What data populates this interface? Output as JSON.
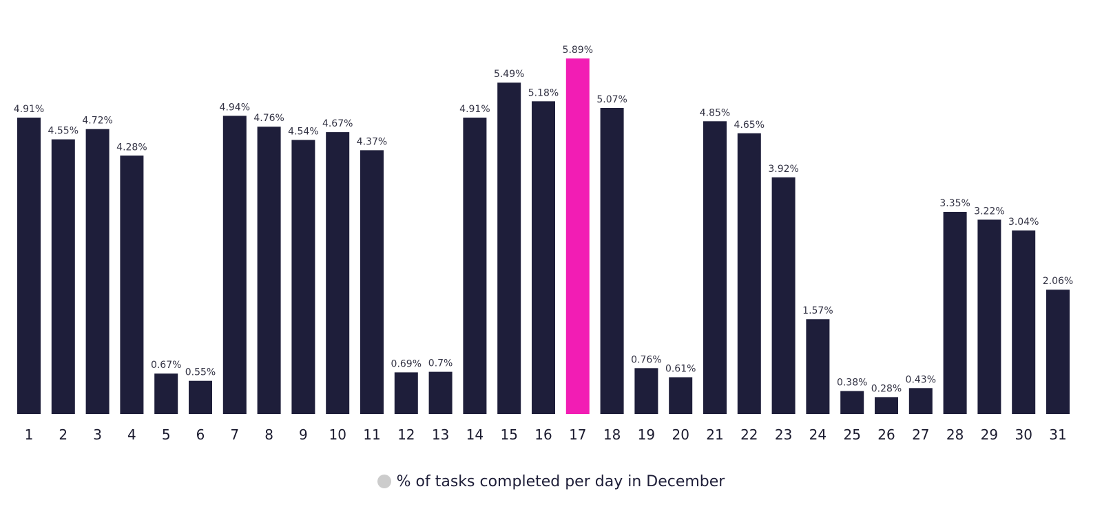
{
  "chart_data": {
    "type": "bar",
    "title": "",
    "xlabel": "",
    "ylabel": "",
    "ylim": [
      0,
      5.89
    ],
    "grid": false,
    "legend_position": "bottom-center",
    "categories": [
      "1",
      "2",
      "3",
      "4",
      "5",
      "6",
      "7",
      "8",
      "9",
      "10",
      "11",
      "12",
      "13",
      "14",
      "15",
      "16",
      "17",
      "18",
      "19",
      "20",
      "21",
      "22",
      "23",
      "24",
      "25",
      "26",
      "27",
      "28",
      "29",
      "30",
      "31"
    ],
    "series": [
      {
        "name": "% of tasks completed per day in December",
        "values": [
          4.91,
          4.55,
          4.72,
          4.28,
          0.67,
          0.55,
          4.94,
          4.76,
          4.54,
          4.67,
          4.37,
          0.69,
          0.7,
          4.91,
          5.49,
          5.18,
          5.89,
          5.07,
          0.76,
          0.61,
          4.85,
          4.65,
          3.92,
          1.57,
          0.38,
          0.28,
          0.43,
          3.35,
          3.22,
          3.04,
          2.06
        ],
        "value_labels": [
          "4.91%",
          "4.55%",
          "4.72%",
          "4.28%",
          "0.67%",
          "0.55%",
          "4.94%",
          "4.76%",
          "4.54%",
          "4.67%",
          "4.37%",
          "0.69%",
          "0.7%",
          "4.91%",
          "5.49%",
          "5.18%",
          "5.89%",
          "5.07%",
          "0.76%",
          "0.61%",
          "4.85%",
          "4.65%",
          "3.92%",
          "1.57%",
          "0.38%",
          "0.28%",
          "0.43%",
          "3.35%",
          "3.22%",
          "3.04%",
          "2.06%"
        ]
      }
    ],
    "highlight_index": 16,
    "colors": {
      "bar": "#1e1e3a",
      "highlight": "#f21db4",
      "legend_marker": "#cccccc"
    }
  },
  "legend": {
    "label": "% of tasks completed per day in December"
  }
}
